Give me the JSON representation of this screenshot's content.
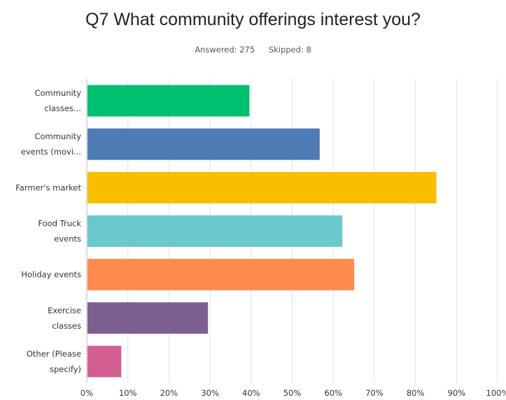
{
  "question": {
    "title": "Q7 What community offerings interest you?"
  },
  "stats": {
    "answered": "Answered: 275",
    "skipped": "Skipped: 8"
  },
  "chart_data": {
    "type": "bar",
    "orientation": "horizontal",
    "categories": [
      [
        "Community",
        "classes..."
      ],
      [
        "Community",
        "events (movi..."
      ],
      [
        "Farmer's market"
      ],
      [
        "Food Truck",
        "events"
      ],
      [
        "Holiday events"
      ],
      [
        "Exercise",
        "classes"
      ],
      [
        "Other (Please",
        "specify)"
      ]
    ],
    "values": [
      39.6,
      56.7,
      85.1,
      62.2,
      65.1,
      29.5,
      8.4
    ],
    "colors": [
      "#00bf6f",
      "#507cb6",
      "#f9be00",
      "#6bc8cd",
      "#ff8b4f",
      "#7d5e90",
      "#d25f90"
    ],
    "x_ticks": [
      "0%",
      "10%",
      "20%",
      "30%",
      "40%",
      "50%",
      "60%",
      "70%",
      "80%",
      "90%",
      "100%"
    ],
    "xlim": [
      0,
      100
    ],
    "grid": true,
    "title": "Q7 What community offerings interest you?"
  }
}
